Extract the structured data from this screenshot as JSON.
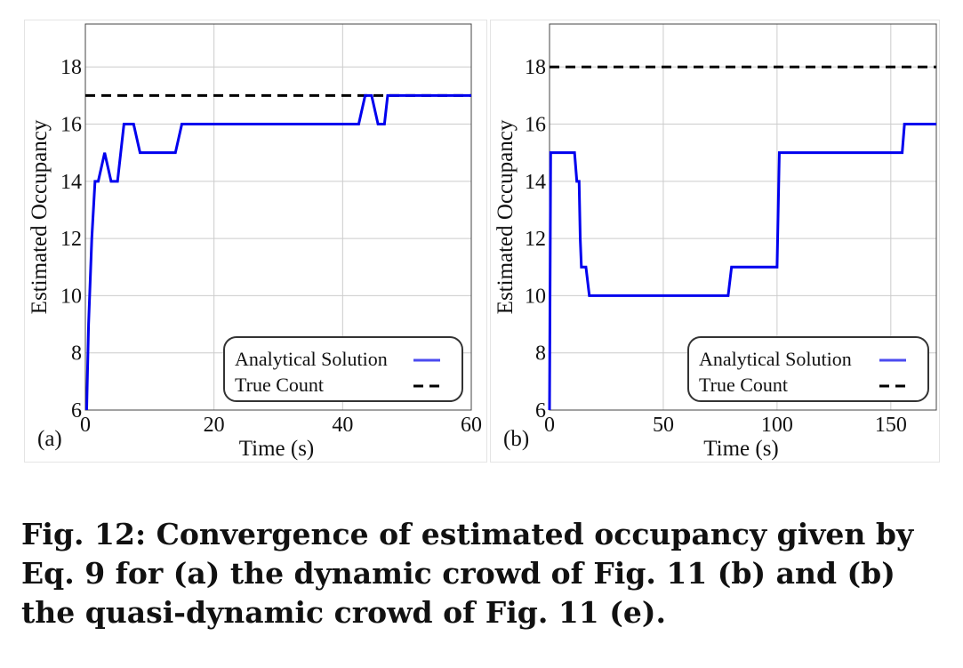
{
  "chart_data": [
    {
      "type": "line",
      "panel_label": "(a)",
      "xlabel": "Time (s)",
      "ylabel": "Estimated Occupancy",
      "xlim": [
        0,
        60
      ],
      "ylim": [
        6,
        19.5
      ],
      "xticks": [
        0,
        20,
        40,
        60
      ],
      "yticks": [
        6,
        8,
        10,
        12,
        14,
        16,
        18
      ],
      "grid": true,
      "legend_position": "bottom-right",
      "series": [
        {
          "name": "Analytical Solution",
          "color": "#0000ee",
          "style": "solid",
          "x": [
            0.2,
            0.5,
            1.0,
            1.5,
            2.0,
            3.0,
            4.0,
            5.0,
            6.0,
            7.5,
            8.5,
            14.0,
            15.0,
            42.5,
            43.5,
            44.5,
            45.5,
            46.5,
            47.0,
            60.0
          ],
          "y": [
            6,
            9,
            12,
            14,
            14,
            15,
            14,
            14,
            16,
            16,
            15,
            15,
            16,
            16,
            17,
            17,
            16,
            16,
            17,
            17
          ]
        },
        {
          "name": "True Count",
          "color": "#000000",
          "style": "dashed",
          "x": [
            0,
            60
          ],
          "y": [
            17,
            17
          ]
        }
      ]
    },
    {
      "type": "line",
      "panel_label": "(b)",
      "xlabel": "Time (s)",
      "ylabel": "Estimated Occupancy",
      "xlim": [
        0,
        170
      ],
      "ylim": [
        6,
        19.5
      ],
      "xticks": [
        0,
        50,
        100,
        150
      ],
      "yticks": [
        6,
        8,
        10,
        12,
        14,
        16,
        18
      ],
      "grid": true,
      "legend_position": "bottom-right",
      "series": [
        {
          "name": "Analytical Solution",
          "color": "#0000ee",
          "style": "solid",
          "x": [
            0.0,
            0.5,
            1.0,
            11.0,
            12.0,
            13.0,
            13.5,
            14.0,
            16.0,
            17.5,
            78.5,
            80.0,
            100.0,
            101.0,
            155.0,
            156.0,
            170.0
          ],
          "y": [
            6,
            15,
            15,
            15,
            14,
            14,
            12,
            11,
            11,
            10,
            10,
            11,
            11,
            15,
            15,
            16,
            16
          ]
        },
        {
          "name": "True Count",
          "color": "#000000",
          "style": "dashed",
          "x": [
            0,
            170
          ],
          "y": [
            18,
            18
          ]
        }
      ]
    }
  ],
  "caption": "Fig. 12: Convergence of estimated occupancy given by Eq. 9 for (a) the dynamic crowd of Fig. 11 (b) and (b) the quasi-dynamic crowd of Fig. 11 (e)."
}
